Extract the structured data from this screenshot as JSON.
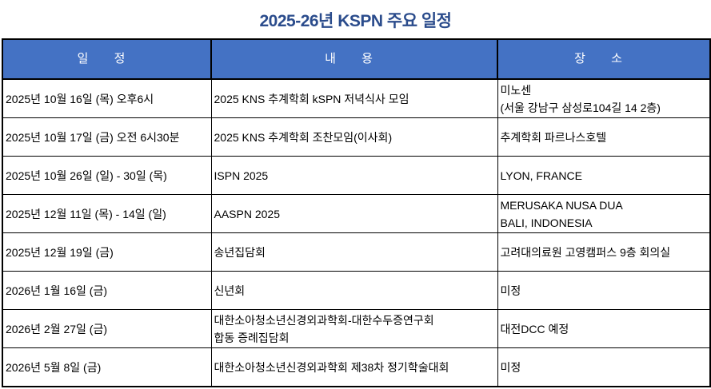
{
  "title": "2025-26년 KSPN 주요 일정",
  "headers": [
    "일 정",
    "내 용",
    "장 소"
  ],
  "rows": [
    {
      "date": "2025년 10월 16일 (목) 오후6시",
      "content": [
        "2025 KNS 추계학회 kSPN 저녁식사 모임"
      ],
      "place": [
        "미노센",
        "(서울 강남구 삼성로104길 14 2층)"
      ]
    },
    {
      "date": "2025년 10월 17일 (금) 오전 6시30분",
      "content": [
        "2025 KNS 추계학회 조찬모임(이사회)"
      ],
      "place": [
        "추계학회 파르나스호텔"
      ]
    },
    {
      "date": "2025년 10월 26일 (일) - 30일 (목)",
      "content": [
        "ISPN 2025"
      ],
      "place": [
        "LYON, FRANCE"
      ]
    },
    {
      "date": "2025년 12월 11일 (목) - 14일 (일)",
      "content": [
        "AASPN 2025"
      ],
      "place": [
        "MERUSAKA NUSA DUA",
        "BALI, INDONESIA"
      ]
    },
    {
      "date": "2025년 12월 19일 (금)",
      "content": [
        "송년집담회"
      ],
      "place": [
        "고려대의료원 고영캠퍼스 9층 회의실"
      ]
    },
    {
      "date": "2026년 1월 16일 (금)",
      "content": [
        "신년회"
      ],
      "place": [
        "미정"
      ]
    },
    {
      "date": "2026년 2월 27일 (금)",
      "content": [
        "대한소아청소년신경외과학회-대한수두증연구회",
        "합동 증례집담회"
      ],
      "place": [
        "대전DCC 예정"
      ]
    },
    {
      "date": "2026년 5월 8일 (금)",
      "content": [
        "대한소아청소년신경외과학회 제38차 정기학술대회"
      ],
      "place": [
        "미정"
      ]
    }
  ],
  "colors": {
    "header_bg": "#4472c4",
    "title": "#2b4c8c"
  }
}
